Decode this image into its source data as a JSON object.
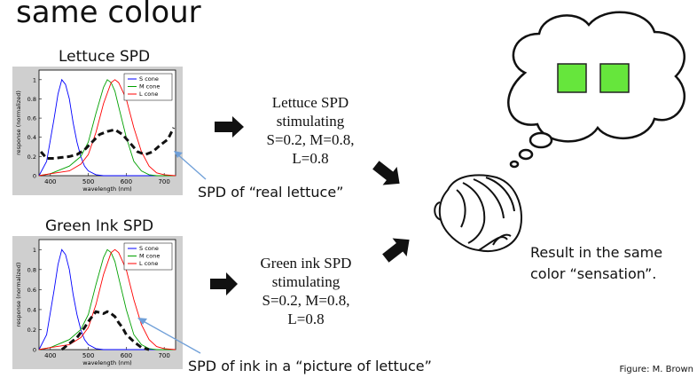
{
  "title": "same colour",
  "panels": [
    {
      "title": "Lettuce SPD",
      "description": [
        "Lettuce SPD",
        "stimulating",
        "S=0.2, M=0.8,",
        "L=0.8"
      ],
      "annotation": "SPD of “real lettuce”"
    },
    {
      "title": "Green Ink SPD",
      "description": [
        "Green ink SPD",
        "stimulating",
        "S=0.2, M=0.8,",
        "L=0.8"
      ],
      "annotation": "SPD of ink in a “picture of lettuce”"
    }
  ],
  "result": [
    "Result in the same",
    "color “sensation”."
  ],
  "credit": "Figure: M. Brown",
  "plot": {
    "ylabel": "response (normalized)",
    "xlabel": "wavelength (nm)",
    "xticks": [
      "400",
      "500",
      "600",
      "700"
    ],
    "yticks": [
      "0",
      "0.2",
      "0.4",
      "0.6",
      "0.8",
      "1"
    ],
    "legend": [
      "S cone",
      "M cone",
      "L cone"
    ]
  },
  "colors": {
    "s_cone": "#0000ff",
    "m_cone": "#00a000",
    "l_cone": "#ff0000",
    "square": "#66e63c",
    "plot_bg": "#cfcfcf"
  },
  "chart_data": [
    {
      "type": "line",
      "title": "Lettuce SPD",
      "xlabel": "wavelength (nm)",
      "ylabel": "response (normalized)",
      "xlim": [
        370,
        730
      ],
      "ylim": [
        0,
        1.1
      ],
      "series": [
        {
          "name": "S cone",
          "x": [
            370,
            390,
            410,
            420,
            430,
            440,
            450,
            460,
            470,
            480,
            490,
            500,
            520,
            540,
            560,
            600,
            730
          ],
          "y": [
            0,
            0.15,
            0.6,
            0.85,
            1,
            0.95,
            0.8,
            0.55,
            0.35,
            0.2,
            0.1,
            0.05,
            0.01,
            0,
            0,
            0,
            0
          ]
        },
        {
          "name": "M cone",
          "x": [
            370,
            400,
            450,
            480,
            500,
            520,
            540,
            550,
            560,
            570,
            580,
            600,
            620,
            640,
            660,
            680,
            730
          ],
          "y": [
            0,
            0.02,
            0.1,
            0.2,
            0.35,
            0.65,
            0.92,
            1,
            0.97,
            0.88,
            0.72,
            0.4,
            0.15,
            0.05,
            0.01,
            0,
            0
          ]
        },
        {
          "name": "L cone",
          "x": [
            370,
            400,
            450,
            480,
            500,
            520,
            540,
            560,
            570,
            580,
            600,
            620,
            640,
            660,
            680,
            700,
            730
          ],
          "y": [
            0,
            0.02,
            0.05,
            0.12,
            0.22,
            0.45,
            0.75,
            0.97,
            1,
            0.97,
            0.8,
            0.5,
            0.25,
            0.1,
            0.03,
            0.01,
            0
          ]
        },
        {
          "name": "SPD",
          "x": [
            375,
            390,
            410,
            430,
            450,
            470,
            490,
            510,
            530,
            550,
            570,
            590,
            610,
            630,
            650,
            670,
            690,
            710,
            725
          ],
          "y": [
            0.25,
            0.18,
            0.18,
            0.19,
            0.2,
            0.22,
            0.27,
            0.35,
            0.43,
            0.46,
            0.48,
            0.43,
            0.34,
            0.25,
            0.22,
            0.25,
            0.32,
            0.38,
            0.5
          ]
        }
      ]
    },
    {
      "type": "line",
      "title": "Green Ink SPD",
      "xlabel": "wavelength (nm)",
      "ylabel": "response (normalized)",
      "xlim": [
        370,
        730
      ],
      "ylim": [
        0,
        1.1
      ],
      "series": [
        {
          "name": "S cone",
          "x": [
            370,
            390,
            410,
            420,
            430,
            440,
            450,
            460,
            470,
            480,
            490,
            500,
            520,
            540,
            560,
            600,
            730
          ],
          "y": [
            0,
            0.15,
            0.6,
            0.85,
            1,
            0.95,
            0.8,
            0.55,
            0.35,
            0.2,
            0.1,
            0.05,
            0.01,
            0,
            0,
            0,
            0
          ]
        },
        {
          "name": "M cone",
          "x": [
            370,
            400,
            450,
            480,
            500,
            520,
            540,
            550,
            560,
            570,
            580,
            600,
            620,
            640,
            660,
            680,
            730
          ],
          "y": [
            0,
            0.02,
            0.1,
            0.2,
            0.35,
            0.65,
            0.92,
            1,
            0.97,
            0.88,
            0.72,
            0.4,
            0.15,
            0.05,
            0.01,
            0,
            0
          ]
        },
        {
          "name": "L cone",
          "x": [
            370,
            400,
            450,
            480,
            500,
            520,
            540,
            560,
            570,
            580,
            600,
            620,
            640,
            660,
            680,
            700,
            730
          ],
          "y": [
            0,
            0.02,
            0.05,
            0.12,
            0.22,
            0.45,
            0.75,
            0.97,
            1,
            0.97,
            0.8,
            0.5,
            0.25,
            0.1,
            0.03,
            0.01,
            0
          ]
        },
        {
          "name": "SPD",
          "x": [
            430,
            450,
            470,
            490,
            500,
            510,
            520,
            530,
            540,
            550,
            560,
            570,
            580,
            590,
            600,
            620,
            640,
            660
          ],
          "y": [
            0,
            0.06,
            0.12,
            0.22,
            0.28,
            0.33,
            0.38,
            0.37,
            0.36,
            0.38,
            0.36,
            0.33,
            0.27,
            0.22,
            0.15,
            0.08,
            0.02,
            0
          ]
        }
      ]
    }
  ]
}
